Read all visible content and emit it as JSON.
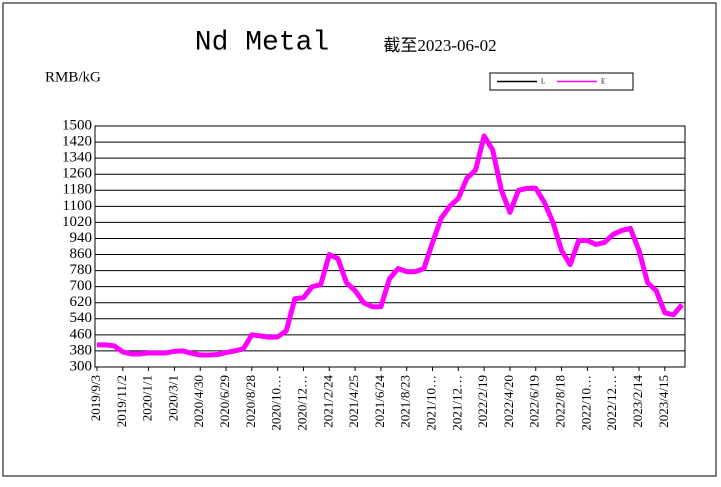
{
  "chart_data": {
    "type": "line",
    "title": "Nd Metal",
    "subtitle": "截至2023-06-02",
    "y_label": "RMB/kG",
    "categories": [
      "2019/9/3",
      null,
      null,
      "2019/11/2",
      null,
      null,
      "2020/1/1",
      null,
      null,
      "2020/3/1",
      null,
      null,
      "2020/4/30",
      null,
      null,
      "2020/6/29",
      null,
      null,
      "2020/8/28",
      null,
      null,
      "2020/10…",
      null,
      null,
      "2020/12…",
      null,
      null,
      "2021/2/24",
      null,
      null,
      "2021/4/25",
      null,
      null,
      "2021/6/24",
      null,
      null,
      "2021/8/23",
      null,
      null,
      "2021/10…",
      null,
      null,
      "2021/12…",
      null,
      null,
      "2022/2/19",
      null,
      null,
      "2022/4/20",
      null,
      null,
      "2022/6/19",
      null,
      null,
      "2022/8/18",
      null,
      null,
      "2022/10…",
      null,
      null,
      "2022/12…",
      null,
      null,
      "2023/2/14",
      null,
      null,
      "2023/4/15",
      null,
      null
    ],
    "series": [
      {
        "name": "L",
        "color": "#000000",
        "values": [
          410,
          410,
          405,
          375,
          365,
          365,
          370,
          370,
          370,
          378,
          380,
          368,
          360,
          360,
          362,
          372,
          380,
          390,
          460,
          455,
          448,
          450,
          480,
          640,
          645,
          700,
          710,
          860,
          840,
          720,
          680,
          620,
          600,
          600,
          740,
          790,
          775,
          775,
          790,
          920,
          1040,
          1100,
          1140,
          1240,
          1280,
          1450,
          1380,
          1180,
          1070,
          1180,
          1190,
          1190,
          1120,
          1020,
          880,
          810,
          930,
          930,
          910,
          920,
          960,
          980,
          990,
          880,
          720,
          680,
          570,
          560,
          610
        ]
      },
      {
        "name": "E",
        "color": "#ff00ff",
        "values": [
          410,
          410,
          405,
          375,
          365,
          365,
          370,
          370,
          370,
          378,
          380,
          368,
          360,
          360,
          362,
          372,
          380,
          390,
          460,
          455,
          448,
          450,
          480,
          640,
          645,
          700,
          710,
          860,
          840,
          720,
          680,
          620,
          600,
          600,
          740,
          790,
          775,
          775,
          790,
          920,
          1040,
          1100,
          1140,
          1240,
          1280,
          1450,
          1380,
          1180,
          1070,
          1180,
          1190,
          1190,
          1120,
          1020,
          880,
          810,
          930,
          930,
          910,
          920,
          960,
          980,
          990,
          880,
          720,
          680,
          570,
          560,
          610
        ]
      }
    ],
    "ylim": [
      300,
      1500
    ],
    "yticks": [
      300,
      380,
      460,
      540,
      620,
      700,
      780,
      860,
      940,
      1020,
      1100,
      1180,
      1260,
      1340,
      1420,
      1500
    ],
    "grid": true,
    "legend": "top-right"
  }
}
